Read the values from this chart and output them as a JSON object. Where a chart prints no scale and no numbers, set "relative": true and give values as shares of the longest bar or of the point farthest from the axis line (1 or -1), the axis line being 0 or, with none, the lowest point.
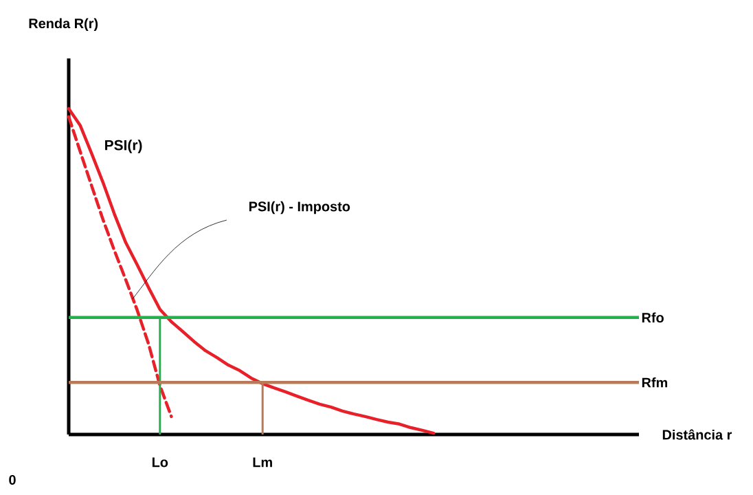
{
  "chart_data": {
    "type": "line",
    "relative": true,
    "xlabel": "Distância r",
    "categories": [
      null,
      null,
      null,
      null,
      null,
      null,
      null,
      null,
      "Lo",
      null,
      null,
      null,
      null,
      null,
      null,
      null,
      null,
      "Lm",
      null,
      null,
      null,
      null,
      null,
      null,
      null,
      null,
      null,
      null,
      null,
      null,
      null,
      null,
      null,
      null,
      null,
      null,
      null,
      null,
      null,
      null,
      null,
      null,
      null,
      null,
      null,
      null,
      null,
      null,
      null,
      null,
      null
    ],
    "series": [
      {
        "name": "PSI(r)",
        "color": "#e8202a",
        "values": [
          1.0,
          0.949,
          0.863,
          0.774,
          0.677,
          0.589,
          0.521,
          0.451,
          0.384,
          0.346,
          0.316,
          0.285,
          0.257,
          0.236,
          0.213,
          0.196,
          0.173,
          0.156,
          0.143,
          0.131,
          0.118,
          0.105,
          0.093,
          0.084,
          0.072,
          0.063,
          0.055,
          0.046,
          0.038,
          0.032,
          0.021,
          0.013,
          0.004,
          null,
          null,
          null,
          null,
          null,
          null,
          null,
          null,
          null,
          null,
          null,
          null,
          null,
          null,
          null,
          null,
          null,
          null
        ]
      },
      {
        "color": "#e8202a",
        "line_style": "dashed",
        "values": [
          0.975,
          0.869,
          0.764,
          0.66,
          0.565,
          0.475,
          0.382,
          0.278,
          0.15,
          0.055,
          null,
          null,
          null,
          null,
          null,
          null,
          null,
          null,
          null,
          null,
          null,
          null,
          null,
          null,
          null,
          null,
          null,
          null,
          null,
          null,
          null,
          null,
          null,
          null,
          null,
          null,
          null,
          null,
          null,
          null,
          null,
          null,
          null,
          null,
          null,
          null,
          null,
          null,
          null,
          null,
          null
        ]
      },
      {
        "type": "bar",
        "colors": [
          "#000000",
          "#000000",
          "#000000",
          "#000000",
          "#000000",
          "#000000",
          "#000000",
          "#000000",
          "#22b14c",
          "#000000",
          "#000000",
          "#000000",
          "#000000",
          "#000000",
          "#000000",
          "#000000",
          "#000000",
          "#b97a57",
          "#000000",
          "#000000",
          "#000000",
          "#000000",
          "#000000",
          "#000000",
          "#000000",
          "#000000",
          "#000000",
          "#000000",
          "#000000",
          "#000000",
          "#000000",
          "#000000",
          "#000000",
          "#000000",
          "#000000",
          "#000000",
          "#000000",
          "#000000",
          "#000000",
          "#000000",
          "#000000",
          "#000000",
          "#000000",
          "#000000",
          "#000000",
          "#000000",
          "#000000",
          "#000000",
          "#000000",
          "#000000",
          "#000000"
        ],
        "values": [
          null,
          null,
          null,
          null,
          null,
          null,
          null,
          null,
          0.359,
          null,
          null,
          null,
          null,
          null,
          null,
          null,
          null,
          0.16,
          null,
          null,
          null,
          null,
          null,
          null,
          null,
          null,
          null,
          null,
          null,
          null,
          null,
          null,
          null,
          null,
          null,
          null,
          null,
          null,
          null,
          null,
          null,
          null,
          null,
          null,
          null,
          null,
          null,
          null,
          null,
          null,
          null
        ]
      }
    ],
    "ref_lines": [
      {
        "axis": "y",
        "value": 0.359,
        "label": "Rfo",
        "color": "#22b14c"
      },
      {
        "axis": "y",
        "value": 0.16,
        "label": "Rfm",
        "color": "#b97a57"
      }
    ],
    "annotations": [
      "0",
      "Renda R(r)",
      "PSI(r) - Imposto"
    ],
    "line_style": "solid",
    "marker": "none"
  }
}
